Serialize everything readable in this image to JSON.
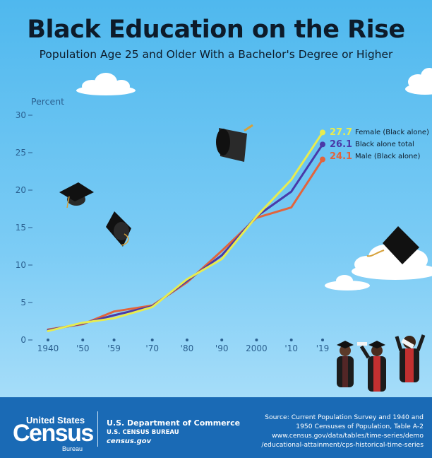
{
  "header": {
    "title": "Black Education on the Rise",
    "subtitle": "Population Age 25 and Older With a Bachelor's Degree or Higher"
  },
  "chart_data": {
    "type": "line",
    "title": "Black Education on the Rise",
    "subtitle": "Population Age 25 and Older With a Bachelor's Degree or Higher",
    "ylabel": "Percent",
    "xlabel": "",
    "ylim": [
      0,
      30
    ],
    "yticks": [
      "0",
      "5",
      "10",
      "15",
      "20",
      "25",
      "30"
    ],
    "x": [
      1940,
      1950,
      1959,
      1970,
      1980,
      1990,
      2000,
      2010,
      2019
    ],
    "xtick_labels": [
      "1940",
      "'50",
      "'59",
      "'70",
      "'80",
      "'90",
      "2000",
      "'10",
      "'19"
    ],
    "grid": false,
    "legend": "right end labels",
    "series": [
      {
        "name": "Female (Black alone)",
        "end_label": "27.7",
        "color": "#e8ec4f",
        "values": [
          1.2,
          2.3,
          2.9,
          4.4,
          8.1,
          10.8,
          16.5,
          21.4,
          27.7
        ]
      },
      {
        "name": "Black alone total",
        "end_label": "26.1",
        "color": "#4a3aa8",
        "values": [
          1.3,
          2.2,
          3.3,
          4.5,
          7.9,
          11.3,
          16.5,
          19.8,
          26.1
        ]
      },
      {
        "name": "Male (Black alone)",
        "end_label": "24.1",
        "color": "#e2643c",
        "values": [
          1.4,
          2.1,
          3.8,
          4.6,
          7.7,
          11.9,
          16.3,
          17.7,
          24.1
        ]
      }
    ]
  },
  "footer": {
    "logo_line1": "United States",
    "logo_line2": "Census",
    "logo_line3": "Bureau",
    "dept_line1": "U.S. Department of Commerce",
    "dept_line2": "U.S. CENSUS BUREAU",
    "dept_line3": "census.gov",
    "source_line1": "Source: Current Population Survey and 1940 and",
    "source_line2": "1950 Censuses of Population, Table A-2",
    "source_line3": "www.census.gov/data/tables/time-series/demo",
    "source_line4": "/educational-attainment/cps-historical-time-series"
  }
}
